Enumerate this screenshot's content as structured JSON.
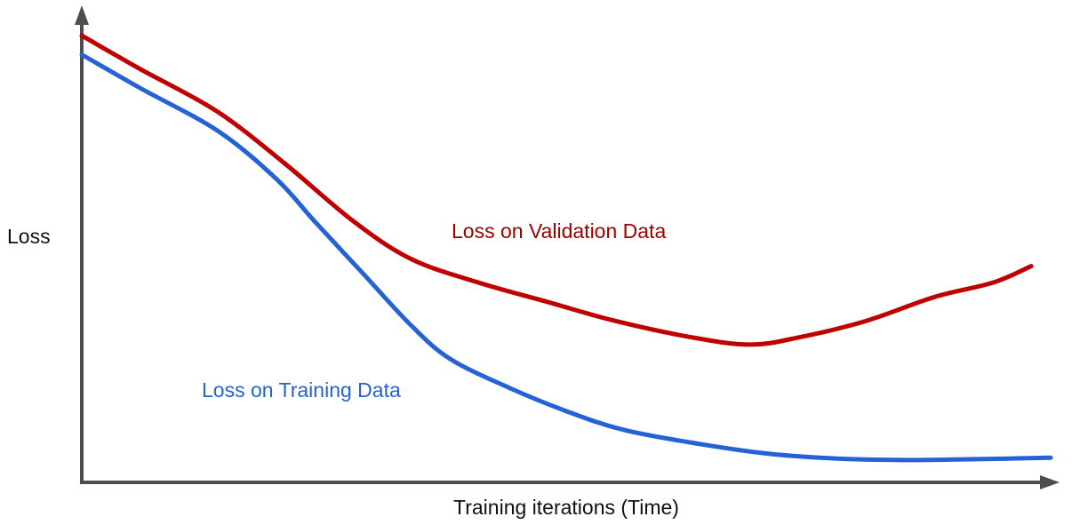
{
  "chart_data": {
    "type": "line",
    "title": "",
    "xlabel": "Training iterations (Time)",
    "ylabel": "Loss",
    "grid": false,
    "legend_position": "inline-labels",
    "axis_color": "#4d4d4d",
    "xlim": [
      0,
      100
    ],
    "ylim": [
      0,
      1
    ],
    "series": [
      {
        "name": "Loss on Validation Data",
        "color": "#c00000",
        "label_color": "#a00000",
        "x": [
          0,
          6,
          14,
          21,
          28,
          34,
          41,
          48,
          55,
          63,
          69,
          74,
          81,
          88,
          94,
          98
        ],
        "y": [
          0.94,
          0.87,
          0.78,
          0.67,
          0.55,
          0.47,
          0.42,
          0.38,
          0.34,
          0.305,
          0.29,
          0.305,
          0.34,
          0.39,
          0.42,
          0.455
        ]
      },
      {
        "name": "Loss on Training Data",
        "color": "#2563d4",
        "label_color": "#2563d4",
        "x": [
          0,
          6,
          14,
          20,
          24,
          29,
          34,
          38,
          44,
          50,
          56,
          64,
          71,
          78,
          85,
          93,
          100
        ],
        "y": [
          0.9,
          0.83,
          0.74,
          0.64,
          0.55,
          0.44,
          0.33,
          0.26,
          0.2,
          0.15,
          0.11,
          0.08,
          0.06,
          0.05,
          0.047,
          0.049,
          0.052
        ]
      }
    ]
  }
}
